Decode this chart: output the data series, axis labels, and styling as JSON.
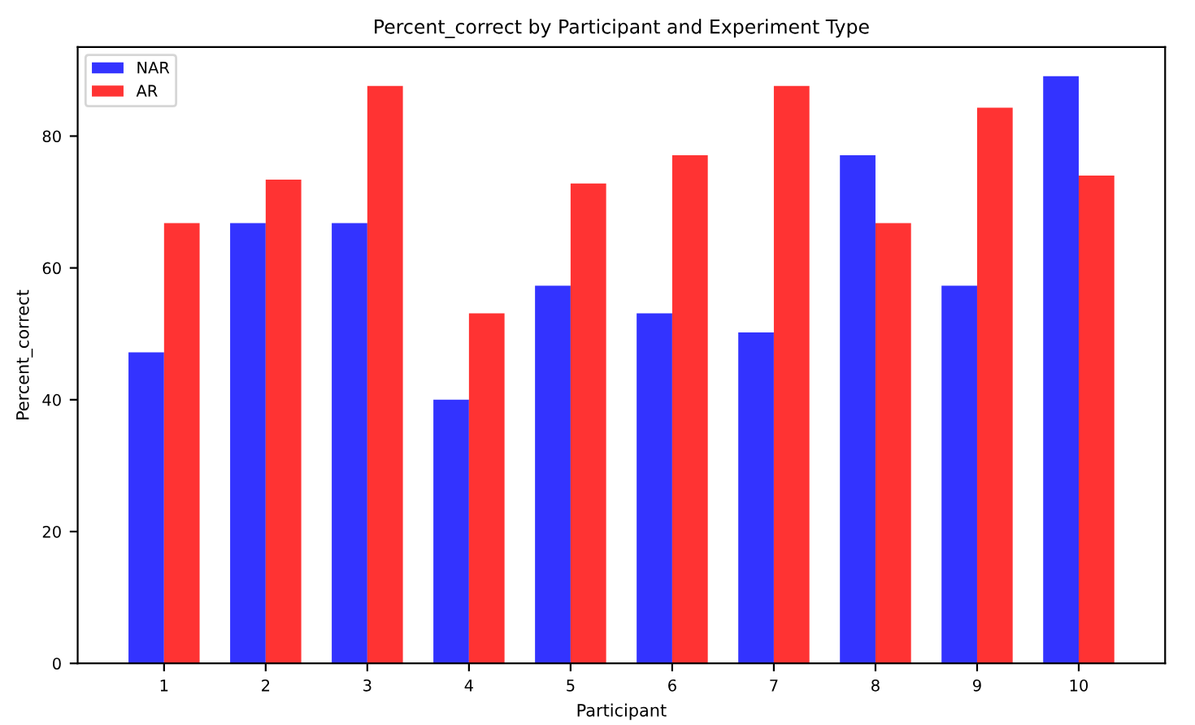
{
  "chart_data": {
    "type": "bar",
    "title": "Percent_correct by Participant and Experiment Type",
    "xlabel": "Participant",
    "ylabel": "Percent_correct",
    "categories": [
      "1",
      "2",
      "3",
      "4",
      "5",
      "6",
      "7",
      "8",
      "9",
      "10"
    ],
    "series": [
      {
        "name": "NAR",
        "color": "#3333ff",
        "values": [
          47.2,
          66.8,
          66.8,
          40.0,
          57.3,
          53.1,
          50.2,
          77.1,
          57.3,
          89.1
        ]
      },
      {
        "name": "AR",
        "color": "#ff3333",
        "values": [
          66.8,
          73.4,
          87.6,
          53.1,
          72.8,
          77.1,
          87.6,
          66.8,
          84.3,
          74.0
        ]
      }
    ],
    "ylim": [
      0,
      93.5
    ],
    "yticks": [
      0,
      20,
      40,
      60,
      80
    ],
    "legend": "top left"
  }
}
